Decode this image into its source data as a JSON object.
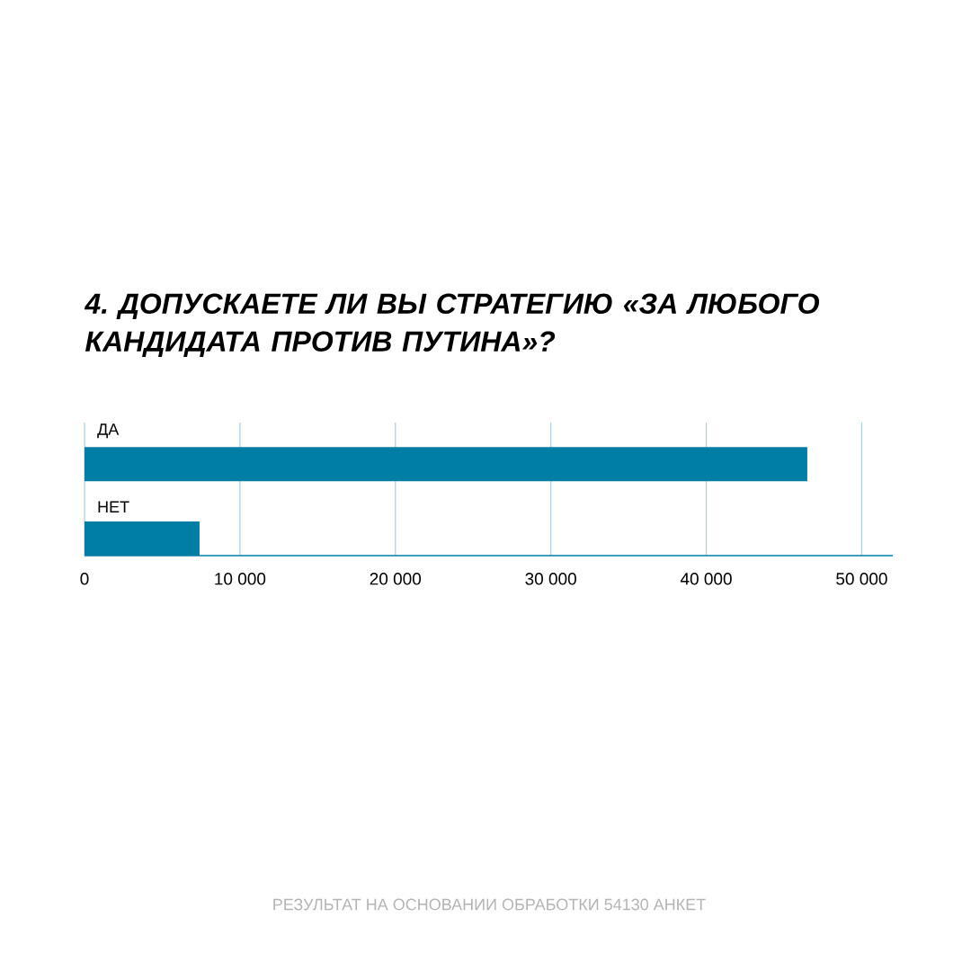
{
  "chart_data": {
    "type": "bar",
    "orientation": "horizontal",
    "title": "4. ДОПУСКАЕТЕ ЛИ ВЫ СТРАТЕГИЮ «ЗА ЛЮБОГО КАНДИДАТА ПРОТИВ ПУТИНА»?",
    "categories": [
      "ДА",
      "НЕТ"
    ],
    "values": [
      46500,
      7400
    ],
    "color": "#007ea3",
    "xlim": [
      0,
      52000
    ],
    "xticks": [
      0,
      {
        "value": 10000,
        "label": "10 000"
      },
      {
        "value": 20000,
        "label": "20 000"
      },
      {
        "value": 30000,
        "label": "30 000"
      },
      {
        "value": 40000,
        "label": "40 000"
      },
      {
        "value": 50000,
        "label": "50 000"
      }
    ],
    "grid": "x",
    "annotations": [
      "РЕЗУЛЬТАТ НА ОСНОВАНИИ ОБРАБОТКИ 54130 АНКЕТ"
    ]
  }
}
